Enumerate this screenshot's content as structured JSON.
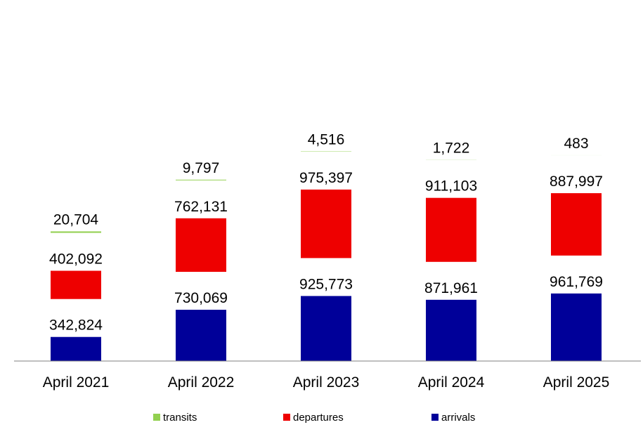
{
  "chart_data": {
    "type": "bar",
    "stacked": true,
    "title": "",
    "xlabel": "",
    "ylabel": "",
    "categories": [
      "April 2021",
      "April 2022",
      "April 2023",
      "April 2024",
      "April 2025"
    ],
    "series": [
      {
        "name": "arrivals",
        "color": "#000099",
        "values": [
          342824,
          730069,
          925773,
          871961,
          961769
        ]
      },
      {
        "name": "departures",
        "color": "#ee0000",
        "values": [
          402092,
          762131,
          975397,
          911103,
          887997
        ]
      },
      {
        "name": "transits",
        "color": "#92d050",
        "values": [
          20704,
          9797,
          4516,
          1722,
          483
        ]
      }
    ],
    "value_labels": [
      [
        "342,824",
        "730,069",
        "925,773",
        "871,961",
        "961,769"
      ],
      [
        "402,092",
        "762,131",
        "975,397",
        "911,103",
        "887,997"
      ],
      [
        "20,704",
        "9,797",
        "4,516",
        "1,722",
        "483"
      ]
    ],
    "legend_order": [
      "transits",
      "departures",
      "arrivals"
    ],
    "legend_position": "bottom",
    "grid": false
  }
}
